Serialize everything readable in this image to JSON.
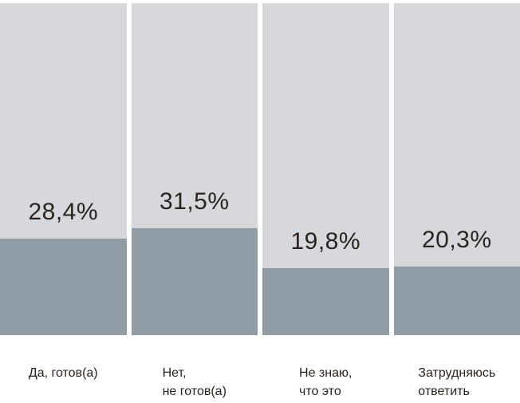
{
  "colors": {
    "background": "#ffffff",
    "bar_background": "#d6d8db",
    "bar_fill": "#929ca5",
    "text": "#2a231f"
  },
  "chart_data": {
    "type": "bar",
    "title": "",
    "xlabel": "",
    "ylabel": "",
    "ylim": [
      0,
      100
    ],
    "grid": false,
    "legend": false,
    "categories": [
      "Да, готов(а)",
      "Нет,\nне готов(а)",
      "Не знаю,\nчто это",
      "Затрудняюсь\nответить"
    ],
    "values": [
      28.4,
      31.5,
      19.8,
      20.3
    ],
    "value_labels": [
      "28,4%",
      "31,5%",
      "19,8%",
      "20,3%"
    ]
  }
}
